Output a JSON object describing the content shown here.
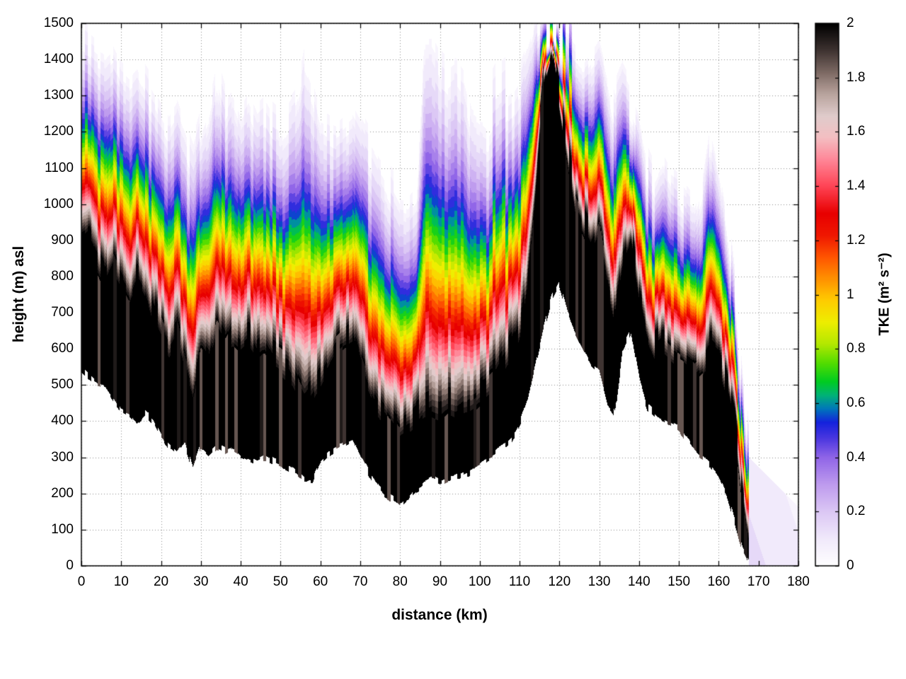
{
  "axes": {
    "xlabel": "distance (km)",
    "ylabel": "height (m) asl",
    "cblabel": "TKE (m² s⁻²)",
    "xrange": [
      0,
      180
    ],
    "yrange": [
      0,
      1500
    ],
    "cbrange": [
      0,
      2
    ],
    "xticks": [
      0,
      10,
      20,
      30,
      40,
      50,
      60,
      70,
      80,
      90,
      100,
      110,
      120,
      130,
      140,
      150,
      160,
      170,
      180
    ],
    "yticks": [
      0,
      100,
      200,
      300,
      400,
      500,
      600,
      700,
      800,
      900,
      1000,
      1100,
      1200,
      1300,
      1400,
      1500
    ],
    "cbtick_values": [
      0,
      0.2,
      0.4,
      0.6,
      0.8,
      1,
      1.2,
      1.4,
      1.6,
      1.8,
      2
    ],
    "cbtick_labels": [
      "0",
      "0.2",
      "0.4",
      "0.6",
      "0.8",
      "1",
      "1.2",
      "1.4",
      "1.6",
      "1.8",
      "2"
    ],
    "grid": "dotted"
  },
  "chart_data": {
    "type": "heatmap",
    "quantity": "TKE",
    "units": "m² s⁻²",
    "x_km": [
      0,
      2,
      4,
      6,
      8,
      10,
      12,
      14,
      16,
      18,
      20,
      22,
      24,
      26,
      28,
      30,
      32,
      34,
      36,
      38,
      40,
      42,
      44,
      46,
      48,
      50,
      52,
      54,
      56,
      58,
      60,
      62,
      64,
      66,
      68,
      70,
      72,
      74,
      76,
      78,
      80,
      82,
      84,
      86,
      88,
      90,
      92,
      94,
      96,
      98,
      100,
      102,
      104,
      106,
      108,
      110,
      112,
      114,
      116,
      118,
      120,
      122,
      124,
      126,
      128,
      130,
      132,
      134,
      136,
      138,
      140,
      142,
      144,
      146,
      148,
      150,
      152,
      154,
      156,
      158,
      160,
      162,
      164,
      166,
      167.5
    ],
    "terrain_m": [
      540,
      520,
      505,
      495,
      460,
      430,
      420,
      395,
      420,
      400,
      360,
      330,
      310,
      340,
      265,
      330,
      310,
      330,
      320,
      330,
      310,
      300,
      290,
      300,
      290,
      280,
      270,
      255,
      235,
      240,
      290,
      310,
      330,
      340,
      350,
      300,
      260,
      230,
      200,
      185,
      170,
      185,
      210,
      230,
      240,
      230,
      240,
      245,
      250,
      260,
      280,
      300,
      310,
      330,
      350,
      390,
      450,
      550,
      650,
      740,
      780,
      700,
      640,
      600,
      560,
      540,
      450,
      420,
      600,
      650,
      520,
      440,
      420,
      400,
      390,
      380,
      350,
      320,
      300,
      280,
      250,
      200,
      120,
      40,
      5
    ],
    "tke2_top_m": [
      880,
      900,
      850,
      800,
      850,
      800,
      760,
      820,
      780,
      700,
      650,
      600,
      640,
      560,
      480,
      600,
      560,
      640,
      600,
      640,
      620,
      640,
      600,
      620,
      580,
      560,
      540,
      500,
      450,
      480,
      520,
      560,
      600,
      620,
      640,
      560,
      500,
      450,
      420,
      390,
      360,
      380,
      400,
      420,
      430,
      420,
      440,
      430,
      450,
      460,
      480,
      500,
      520,
      560,
      600,
      650,
      800,
      1050,
      1350,
      1440,
      1300,
      1150,
      1000,
      950,
      900,
      950,
      800,
      700,
      850,
      900,
      750,
      650,
      600,
      620,
      600,
      580,
      560,
      540,
      560,
      600,
      580,
      500,
      400,
      200,
      80
    ],
    "tke0_top_m": [
      1500,
      1480,
      1460,
      1450,
      1470,
      1420,
      1400,
      1430,
      1380,
      1340,
      1300,
      1260,
      1300,
      1240,
      1180,
      1260,
      1320,
      1420,
      1340,
      1380,
      1320,
      1360,
      1300,
      1320,
      1280,
      1260,
      1300,
      1340,
      1460,
      1400,
      1300,
      1280,
      1260,
      1280,
      1300,
      1260,
      1220,
      1180,
      1140,
      1100,
      1060,
      1050,
      1080,
      1500,
      1500,
      1450,
      1420,
      1440,
      1400,
      1300,
      1280,
      1260,
      1300,
      1320,
      1340,
      1380,
      1440,
      1500,
      1500,
      1500,
      1480,
      1460,
      1440,
      1420,
      1460,
      1490,
      1400,
      1300,
      1350,
      1300,
      1250,
      1150,
      1100,
      1150,
      1100,
      1080,
      1050,
      1020,
      1100,
      1250,
      1150,
      1000,
      800,
      500,
      300
    ],
    "decay_exponent": 1.7,
    "contour_step": 0.05,
    "jitter": {
      "column_km": 0.8,
      "terrain_m": 24,
      "black_top_m": 90,
      "top_m": 130,
      "spike_m": 170,
      "gray_column_fraction": 0.25
    },
    "tail": {
      "start_km": 167.5,
      "top_m": 300,
      "top_slope_m_per_km": 11,
      "tke": 0.12,
      "fade_km": 26
    },
    "palette": [
      [
        0.0,
        "#ffffff"
      ],
      [
        0.1,
        "#f1eafb"
      ],
      [
        0.2,
        "#dcc8f5"
      ],
      [
        0.3,
        "#bf9cee"
      ],
      [
        0.4,
        "#9166e8"
      ],
      [
        0.47,
        "#4c38e0"
      ],
      [
        0.53,
        "#1522dd"
      ],
      [
        0.58,
        "#0077bb"
      ],
      [
        0.63,
        "#00b377"
      ],
      [
        0.68,
        "#00cc22"
      ],
      [
        0.75,
        "#55dd00"
      ],
      [
        0.82,
        "#b5e800"
      ],
      [
        0.9,
        "#eeee00"
      ],
      [
        0.98,
        "#ffcc00"
      ],
      [
        1.06,
        "#ff9100"
      ],
      [
        1.14,
        "#ff5500"
      ],
      [
        1.22,
        "#f01800"
      ],
      [
        1.3,
        "#e80000"
      ],
      [
        1.4,
        "#ff4455"
      ],
      [
        1.5,
        "#ff8899"
      ],
      [
        1.58,
        "#f4bfc2"
      ],
      [
        1.66,
        "#e0cccc"
      ],
      [
        1.74,
        "#b9a49e"
      ],
      [
        1.82,
        "#7e6a64"
      ],
      [
        1.9,
        "#3f3432"
      ],
      [
        2.0,
        "#000000"
      ]
    ]
  }
}
